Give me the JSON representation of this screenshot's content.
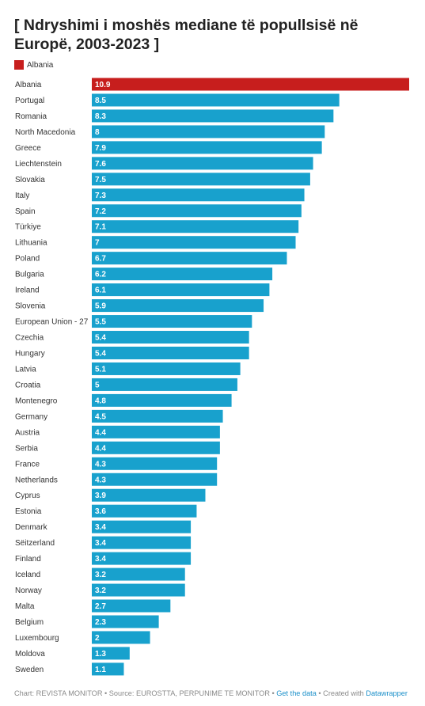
{
  "chart_data": {
    "type": "bar",
    "orientation": "horizontal",
    "title": "[ Ndryshimi i moshës mediane të popullsisë në Europë, 2003-2023 ]",
    "legend": {
      "entries": [
        "Albania"
      ],
      "placement": "top-left"
    },
    "categories": [
      "Albania",
      "Portugal",
      "Romania",
      "North Macedonia",
      "Greece",
      "Liechtenstein",
      "Slovakia",
      "Italy",
      "Spain",
      "Türkiye",
      "Lithuania",
      "Poland",
      "Bulgaria",
      "Ireland",
      "Slovenia",
      "European Union - 27",
      "Czechia",
      "Hungary",
      "Latvia",
      "Croatia",
      "Montenegro",
      "Germany",
      "Austria",
      "Serbia",
      "France",
      "Netherlands",
      "Cyprus",
      "Estonia",
      "Denmark",
      "Sëitzerland",
      "Finland",
      "Iceland",
      "Norway",
      "Malta",
      "Belgium",
      "Luxembourg",
      "Moldova",
      "Sweden"
    ],
    "values": [
      10.9,
      8.5,
      8.3,
      8,
      7.9,
      7.6,
      7.5,
      7.3,
      7.2,
      7.1,
      7,
      6.7,
      6.2,
      6.1,
      5.9,
      5.5,
      5.4,
      5.4,
      5.1,
      5,
      4.8,
      4.5,
      4.4,
      4.4,
      4.3,
      4.3,
      3.9,
      3.6,
      3.4,
      3.4,
      3.4,
      3.2,
      3.2,
      2.7,
      2.3,
      2,
      1.3,
      1.1
    ],
    "value_labels": [
      "10.9",
      "8.5",
      "8.3",
      "8",
      "7.9",
      "7.6",
      "7.5",
      "7.3",
      "7.2",
      "7.1",
      "7",
      "6.7",
      "6.2",
      "6.1",
      "5.9",
      "5.5",
      "5.4",
      "5.4",
      "5.1",
      "5",
      "4.8",
      "4.5",
      "4.4",
      "4.4",
      "4.3",
      "4.3",
      "3.9",
      "3.6",
      "3.4",
      "3.4",
      "3.4",
      "3.2",
      "3.2",
      "2.7",
      "2.3",
      "2",
      "1.3",
      "1.1"
    ],
    "highlight": "Albania",
    "xlim": [
      0,
      10.9
    ],
    "grid": false,
    "colors": {
      "highlight": "#c71e1d",
      "default": "#18a1cd",
      "label": "#ffffff"
    }
  },
  "footer": {
    "prefix": "Chart: REVISTA MONITOR • Source: EUROSTTA, PERPUNIME TE MONITOR • ",
    "get_data": "Get the data",
    "created_with": " • Created with ",
    "datawrapper": "Datawrapper"
  }
}
